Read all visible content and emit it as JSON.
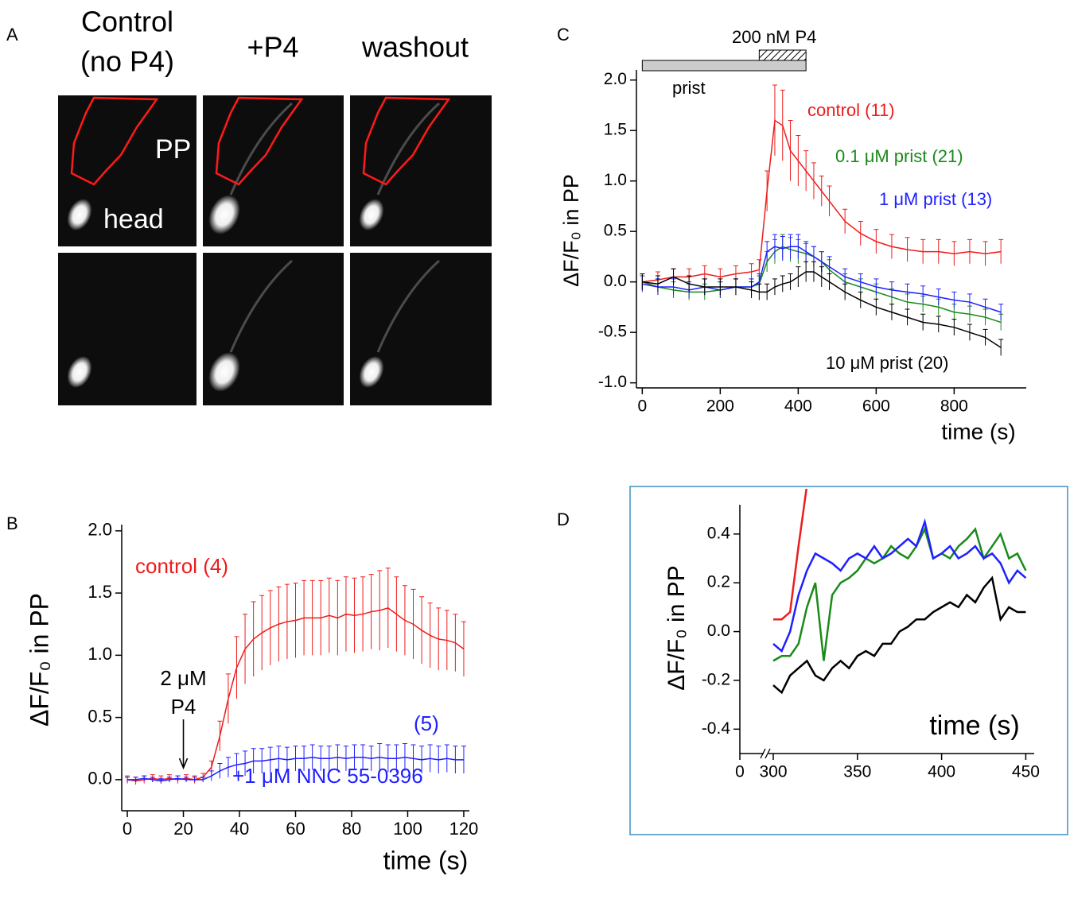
{
  "panel_a": {
    "panel_label": "A",
    "column_titles": [
      [
        "Control",
        "(no P4)"
      ],
      [
        "+P4"
      ],
      [
        "washout"
      ]
    ],
    "labels": [
      "PP",
      "head"
    ]
  },
  "chart_data": [
    {
      "type": "line",
      "panel_label": "B",
      "xlabel": "time (s)",
      "ylabel": "ΔF/F₀ in PP",
      "xlim": [
        -2,
        122
      ],
      "ylim": [
        -0.25,
        2.05
      ],
      "xticks": [
        0,
        20,
        40,
        60,
        80,
        100,
        120
      ],
      "yticks": [
        {
          "value": 0,
          "label": "0.0"
        },
        0.5,
        {
          "value": 1,
          "label": "1.0"
        },
        1.5,
        {
          "value": 2,
          "label": "2.0"
        }
      ],
      "x": [
        0,
        3,
        6,
        9,
        12,
        15,
        18,
        21,
        24,
        27,
        30,
        33,
        36,
        39,
        42,
        45,
        48,
        51,
        54,
        57,
        60,
        63,
        66,
        69,
        72,
        75,
        78,
        81,
        84,
        87,
        90,
        93,
        96,
        99,
        102,
        105,
        108,
        111,
        114,
        117,
        120
      ],
      "series": [
        {
          "name": "control (4)",
          "color": "#ee1c1c",
          "values": [
            0,
            -0.01,
            0,
            0.01,
            0,
            0.01,
            0,
            0.01,
            0,
            0.02,
            0.1,
            0.35,
            0.65,
            0.9,
            1.05,
            1.13,
            1.18,
            1.22,
            1.25,
            1.27,
            1.28,
            1.3,
            1.3,
            1.3,
            1.32,
            1.3,
            1.33,
            1.32,
            1.33,
            1.35,
            1.36,
            1.38,
            1.33,
            1.28,
            1.25,
            1.2,
            1.16,
            1.13,
            1.12,
            1.1,
            1.05
          ],
          "errors": [
            0.03,
            0.03,
            0.03,
            0.03,
            0.03,
            0.03,
            0.03,
            0.03,
            0.03,
            0.03,
            0.05,
            0.12,
            0.2,
            0.25,
            0.28,
            0.3,
            0.3,
            0.3,
            0.3,
            0.3,
            0.3,
            0.3,
            0.3,
            0.3,
            0.3,
            0.3,
            0.3,
            0.3,
            0.3,
            0.3,
            0.32,
            0.32,
            0.3,
            0.28,
            0.28,
            0.27,
            0.26,
            0.25,
            0.24,
            0.23,
            0.22
          ]
        },
        {
          "name": "(5)",
          "color": "#1f1fff",
          "values": [
            0,
            0,
            0.01,
            0,
            -0.01,
            0,
            0.01,
            0,
            0,
            0,
            0.03,
            0.07,
            0.1,
            0.12,
            0.13,
            0.15,
            0.15,
            0.16,
            0.17,
            0.16,
            0.17,
            0.17,
            0.18,
            0.17,
            0.17,
            0.18,
            0.17,
            0.18,
            0.18,
            0.17,
            0.18,
            0.17,
            0.17,
            0.18,
            0.17,
            0.16,
            0.17,
            0.16,
            0.17,
            0.16,
            0.16
          ],
          "errors": [
            0.02,
            0.02,
            0.02,
            0.02,
            0.02,
            0.02,
            0.02,
            0.02,
            0.02,
            0.02,
            0.04,
            0.06,
            0.08,
            0.09,
            0.1,
            0.1,
            0.1,
            0.1,
            0.1,
            0.1,
            0.1,
            0.1,
            0.1,
            0.1,
            0.1,
            0.1,
            0.1,
            0.1,
            0.1,
            0.1,
            0.11,
            0.11,
            0.11,
            0.11,
            0.11,
            0.11,
            0.11,
            0.11,
            0.11,
            0.11,
            0.11
          ]
        }
      ],
      "annotations": [
        {
          "text": "+1 μM NNC 55-0396",
          "color": "#1f1fff"
        }
      ],
      "arrow_annotation": {
        "lines": [
          "2 μM",
          "P4"
        ],
        "x": 20
      }
    },
    {
      "type": "line",
      "panel_label": "C",
      "xlabel": "time (s)",
      "ylabel": "ΔF/F₀ in PP",
      "xlim": [
        -15,
        985
      ],
      "ylim": [
        -1.05,
        2.1
      ],
      "xticks": [
        0,
        200,
        400,
        600,
        800
      ],
      "yticks": [
        {
          "value": -1,
          "label": "-1.0"
        },
        -0.5,
        {
          "value": 0,
          "label": "0.0"
        },
        0.5,
        {
          "value": 1,
          "label": "1.0"
        },
        1.5,
        {
          "value": 2,
          "label": "2.0"
        }
      ],
      "x": [
        0,
        40,
        80,
        120,
        160,
        200,
        240,
        280,
        300,
        320,
        340,
        360,
        380,
        400,
        420,
        440,
        460,
        480,
        520,
        560,
        600,
        640,
        680,
        720,
        760,
        800,
        840,
        880,
        920
      ],
      "series": [
        {
          "name": "control (11)",
          "color": "#ee1c1c",
          "values": [
            0,
            0.02,
            0.05,
            0.05,
            0.08,
            0.05,
            0.08,
            0.1,
            0.12,
            0.9,
            1.6,
            1.55,
            1.3,
            1.2,
            1.1,
            1,
            0.9,
            0.8,
            0.6,
            0.48,
            0.4,
            0.35,
            0.32,
            0.3,
            0.3,
            0.28,
            0.3,
            0.28,
            0.3
          ],
          "errors": [
            0.08,
            0.08,
            0.08,
            0.08,
            0.08,
            0.08,
            0.08,
            0.08,
            0.1,
            0.2,
            0.35,
            0.35,
            0.3,
            0.25,
            0.2,
            0.18,
            0.15,
            0.15,
            0.12,
            0.12,
            0.12,
            0.12,
            0.12,
            0.12,
            0.12,
            0.12,
            0.12,
            0.12,
            0.12
          ]
        },
        {
          "name": "0.1 μM prist (21)",
          "color": "#1a8a1a",
          "values": [
            0,
            -0.05,
            -0.08,
            -0.1,
            -0.1,
            -0.08,
            -0.05,
            -0.05,
            -0.02,
            0.2,
            0.3,
            0.35,
            0.32,
            0.3,
            0.28,
            0.25,
            0.2,
            0.12,
            0,
            -0.05,
            -0.1,
            -0.15,
            -0.2,
            -0.22,
            -0.25,
            -0.3,
            -0.32,
            -0.35,
            -0.4
          ],
          "errors": [
            0.08,
            0.08,
            0.08,
            0.08,
            0.08,
            0.08,
            0.08,
            0.08,
            0.08,
            0.1,
            0.12,
            0.12,
            0.12,
            0.12,
            0.1,
            0.1,
            0.1,
            0.1,
            0.08,
            0.08,
            0.08,
            0.08,
            0.08,
            0.08,
            0.08,
            0.08,
            0.08,
            0.08,
            0.08
          ]
        },
        {
          "name": "1 μM prist (13)",
          "color": "#1f1fff",
          "values": [
            -0.02,
            -0.05,
            -0.05,
            -0.08,
            -0.05,
            -0.08,
            -0.05,
            -0.05,
            0,
            0.3,
            0.35,
            0.33,
            0.35,
            0.35,
            0.3,
            0.25,
            0.2,
            0.15,
            0.05,
            0,
            -0.05,
            -0.08,
            -0.1,
            -0.12,
            -0.15,
            -0.18,
            -0.2,
            -0.25,
            -0.3
          ],
          "errors": [
            0.08,
            0.08,
            0.08,
            0.08,
            0.08,
            0.08,
            0.08,
            0.08,
            0.08,
            0.1,
            0.12,
            0.12,
            0.12,
            0.12,
            0.1,
            0.1,
            0.1,
            0.1,
            0.08,
            0.08,
            0.08,
            0.08,
            0.08,
            0.08,
            0.08,
            0.08,
            0.08,
            0.08,
            0.08
          ]
        },
        {
          "name": "10 μM prist (20)",
          "color": "#000000",
          "values": [
            0,
            -0.02,
            0.05,
            -0.02,
            -0.05,
            -0.05,
            -0.05,
            -0.08,
            -0.1,
            -0.1,
            -0.05,
            -0.02,
            0,
            0.05,
            0.1,
            0.1,
            0.05,
            0,
            -0.1,
            -0.18,
            -0.25,
            -0.3,
            -0.35,
            -0.4,
            -0.42,
            -0.45,
            -0.5,
            -0.55,
            -0.65
          ],
          "errors": [
            0.08,
            0.08,
            0.08,
            0.08,
            0.08,
            0.08,
            0.08,
            0.08,
            0.08,
            0.08,
            0.08,
            0.08,
            0.08,
            0.1,
            0.1,
            0.1,
            0.1,
            0.08,
            0.08,
            0.08,
            0.08,
            0.08,
            0.08,
            0.08,
            0.08,
            0.08,
            0.08,
            0.08,
            0.08
          ]
        }
      ],
      "bars": [
        {
          "label": "prist",
          "range": [
            0,
            420
          ]
        },
        {
          "label": "200 nM P4",
          "range": [
            300,
            420
          ]
        }
      ]
    },
    {
      "type": "line",
      "panel_label": "D",
      "xlabel": "time (s)",
      "ylabel": "ΔF/F₀ in PP",
      "xlim": [
        300,
        455
      ],
      "ylim": [
        -0.5,
        0.52
      ],
      "x_axis_break": true,
      "xticks": [
        0,
        300,
        350,
        400,
        450
      ],
      "yticks": [
        -0.4,
        -0.2,
        {
          "value": 0,
          "label": "0.0"
        },
        0.2,
        0.4
      ],
      "x": [
        300,
        305,
        310,
        315,
        320,
        325,
        330,
        335,
        340,
        345,
        350,
        355,
        360,
        365,
        370,
        375,
        380,
        385,
        390,
        395,
        400,
        405,
        410,
        415,
        420,
        425,
        430,
        435,
        440,
        445,
        450
      ],
      "series": [
        {
          "color": "#ee1c1c",
          "values": [
            0.05,
            0.05,
            0.08,
            0.35,
            0.6,
            null,
            null,
            null,
            null,
            null,
            null,
            null,
            null,
            null,
            null,
            null,
            null,
            null,
            null,
            null,
            null,
            null,
            null,
            null,
            null,
            null,
            null,
            null,
            null,
            null,
            null
          ]
        },
        {
          "color": "#1a8a1a",
          "values": [
            -0.12,
            -0.1,
            -0.1,
            -0.05,
            0.1,
            0.2,
            -0.12,
            0.15,
            0.2,
            0.22,
            0.25,
            0.3,
            0.28,
            0.3,
            0.35,
            0.32,
            0.3,
            0.35,
            0.42,
            0.3,
            0.32,
            0.3,
            0.35,
            0.38,
            0.42,
            0.3,
            0.35,
            0.4,
            0.3,
            0.32,
            0.25
          ]
        },
        {
          "color": "#1f1fff",
          "values": [
            -0.05,
            -0.08,
            0,
            0.15,
            0.25,
            0.32,
            0.3,
            0.28,
            0.25,
            0.3,
            0.32,
            0.3,
            0.35,
            0.3,
            0.32,
            0.35,
            0.38,
            0.35,
            0.45,
            0.3,
            0.32,
            0.35,
            0.3,
            0.32,
            0.35,
            0.3,
            0.32,
            0.28,
            0.2,
            0.25,
            0.22
          ]
        },
        {
          "color": "#000000",
          "values": [
            -0.22,
            -0.25,
            -0.18,
            -0.15,
            -0.12,
            -0.18,
            -0.2,
            -0.15,
            -0.12,
            -0.15,
            -0.1,
            -0.08,
            -0.1,
            -0.05,
            -0.05,
            0,
            0.02,
            0.05,
            0.05,
            0.08,
            0.1,
            0.12,
            0.1,
            0.15,
            0.12,
            0.18,
            0.22,
            0.05,
            0.1,
            0.08,
            0.08
          ]
        }
      ]
    }
  ]
}
